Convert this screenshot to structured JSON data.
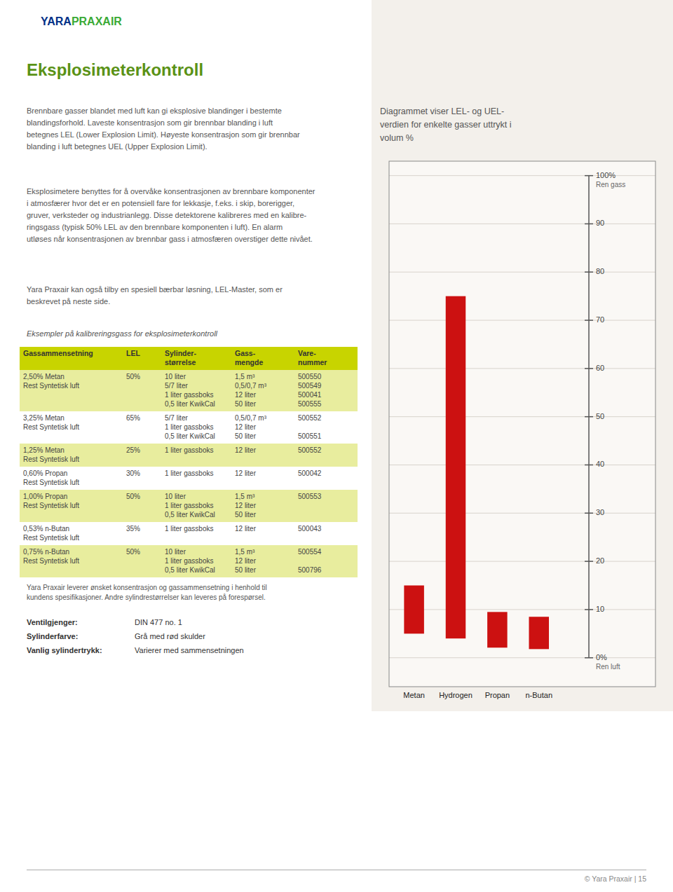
{
  "chart_data": {
    "type": "bar",
    "title": "Diagrammet viser LEL- og UEL-\nverdien for enkelte gasser uttrykt i\nvolum %",
    "categories": [
      "Metan",
      "Hydrogen",
      "Propan",
      "n-Butan"
    ],
    "lower": [
      5.0,
      4.0,
      2.1,
      1.8
    ],
    "values": [
      15.0,
      75.0,
      9.5,
      8.5
    ],
    "color": "#cc1111",
    "ylim": [
      -6,
      103
    ],
    "yticks": [
      {
        "value": 0,
        "label": "0%"
      },
      10,
      20,
      30,
      40,
      50,
      60,
      70,
      80,
      90,
      {
        "value": 100,
        "label": "100%"
      }
    ],
    "grid": true,
    "annotations": [
      "Ren gass",
      "Ren luft"
    ]
  },
  "page": {
    "logo": [
      "YARA",
      "PRAXAIR"
    ],
    "logo_colors": [
      "#003087",
      "#3aaa35"
    ],
    "title": "Eksplosimeterkontroll",
    "title_color": "#5a9216",
    "paragraphs": [
      "Brennbare gasser blandet med luft kan gi eksplosive blandinger i bestemte\nblandingsforhold. Laveste konsentrasjon som gir brennbar blanding i luft\nbetegnes LEL (Lower Explosion Limit). Høyeste konsentrasjon som gir brennbar\nblanding i luft betegnes UEL (Upper Explosion Limit).",
      "Eksplosimetere benyttes for å overvåke konsentrasjonen av brennbare komponenter\ni atmosfærer hvor det er en potensiell fare for lekkasje, f.eks. i skip, borerigger,\ngruver, verksteder og industrianlegg. Disse detektorene kalibreres med en kalibre-\nringsgass (typisk 50% LEL av den brennbare komponenten i luft). En alarm\nutløses når konsentrasjonen av brennbar gass i atmosfæren overstiger dette nivået.",
      "Yara Praxair kan også tilby en spesiell bærbar løsning, LEL-Master, som er\nbeskrevet på neste side."
    ],
    "table_intro": "Eksempler på kalibreringsgass for eksplosimeterkontroll",
    "table": {
      "header": [
        "Gassammensetning",
        "LEL",
        "Sylinder-\nstørrelse",
        "Gass-\nmengde",
        "Vare-\nnummer"
      ],
      "header_color": "#c8d400",
      "alt_color": "#e8ed9e",
      "rows": [
        [
          "2,50% Metan\nRest Syntetisk luft",
          "50%",
          "10 liter\n5/7 liter\n1 liter gassboks\n0,5 liter KwikCal",
          "1,5 m³\n0,5/0,7 m³\n12 liter\n50 liter",
          "500550\n500549\n500041\n500555"
        ],
        [
          "3,25% Metan\nRest Syntetisk luft",
          "65%",
          "5/7 liter\n1 liter gassboks\n0,5 liter KwikCal",
          "0,5/0,7 m³\n12 liter\n50 liter",
          "500552\n\n500551"
        ],
        [
          "1,25% Metan\nRest Syntetisk luft",
          "25%",
          "1 liter gassboks",
          "12 liter",
          "500552"
        ],
        [
          "0,60% Propan\nRest Syntetisk luft",
          "30%",
          "1 liter gassboks",
          "12 liter",
          "500042"
        ],
        [
          "1,00% Propan\nRest Syntetisk luft",
          "50%",
          "10 liter\n1 liter gassboks\n0,5 liter KwikCal",
          "1,5 m³\n12 liter\n50 liter",
          "500553"
        ],
        [
          "0,53% n-Butan\nRest Syntetisk luft",
          "35%",
          "1 liter gassboks",
          "12 liter",
          "500043"
        ],
        [
          "0,75% n-Butan\nRest Syntetisk luft",
          "50%",
          "10 liter\n1 liter gassboks\n0,5 liter KwikCal",
          "1,5 m³\n12 liter\n50 liter",
          "500554\n\n500796"
        ]
      ]
    },
    "footer_note": "Yara Praxair leverer ønsket konsentrasjon og gassammensetning i henhold til\nkundens spesifikasjoner. Andre sylindrestørrelser kan leveres på forespørsel.",
    "specs": [
      [
        "Ventilgjenger:",
        "DIN 477 no. 1"
      ],
      [
        "Sylinderfarve:",
        "Grå med rød skulder"
      ],
      [
        "Vanlig sylindertrykk:",
        "Varierer med sammensetningen"
      ]
    ],
    "footer_page": "© Yara Praxair  |  15"
  }
}
